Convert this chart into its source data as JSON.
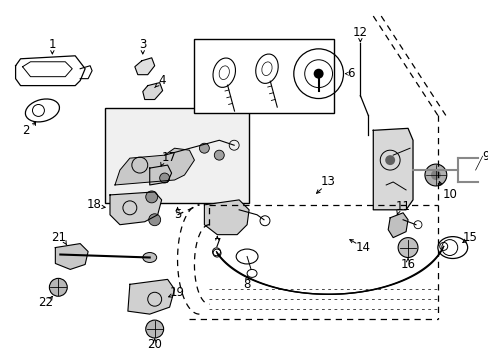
{
  "bg_color": "#ffffff",
  "line_color": "#000000",
  "figsize": [
    4.89,
    3.6
  ],
  "dpi": 100,
  "font_size": 8.5
}
